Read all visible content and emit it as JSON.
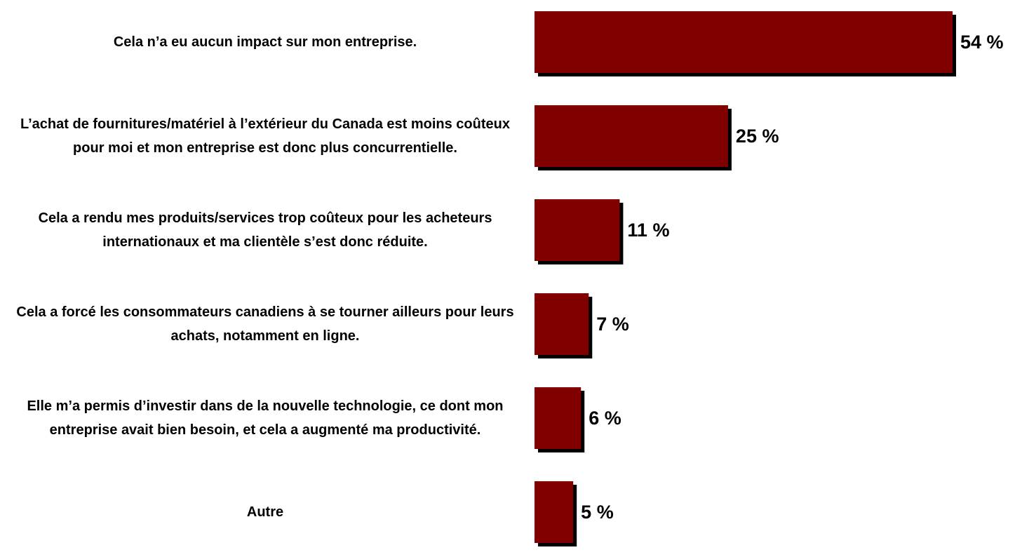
{
  "chart_data": {
    "type": "bar",
    "orientation": "horizontal",
    "categories": [
      "Cela n’a eu aucun impact sur mon entreprise.",
      "L’achat de fournitures/matériel à l’extérieur du Canada est moins coûteux pour moi et mon entreprise est donc plus concurrentielle.",
      "Cela a rendu mes produits/services trop coûteux pour les acheteurs internationaux et ma clientèle s’est donc réduite.",
      "Cela a forcé les consommateurs canadiens à se tourner ailleurs pour leurs achats, notamment en ligne.",
      "Elle m’a permis d’investir dans de la nouvelle technologie, ce dont mon entreprise avait bien besoin, et cela a augmenté ma productivité.",
      "Autre"
    ],
    "values": [
      54,
      25,
      11,
      7,
      6,
      5
    ],
    "value_labels": [
      "54 %",
      "25 %",
      "11 %",
      "7 %",
      "6 %",
      "5 %"
    ],
    "color": "#800000",
    "shadow_color": "#000000"
  }
}
